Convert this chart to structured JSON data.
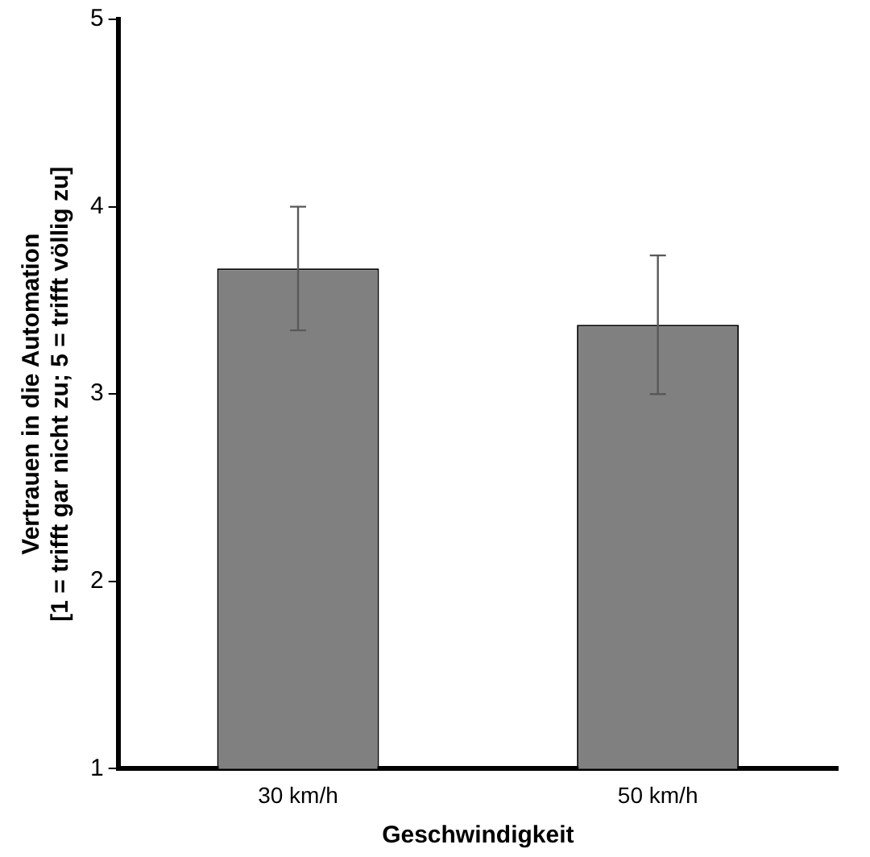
{
  "chart_data": {
    "type": "bar",
    "xlabel": "Geschwindigkeit",
    "ylabel": "Vertrauen in die Automation\n[1 = trifft gar nicht zu; 5 = trifft völlig zu]",
    "categories": [
      "30 km/h",
      "50 km/h"
    ],
    "values": [
      3.67,
      3.37
    ],
    "errors": [
      0.33,
      0.37
    ],
    "color": "#808080",
    "ylim": [
      1,
      5
    ],
    "yticks": [
      1,
      2,
      3,
      4,
      5
    ],
    "grid": false,
    "legend": false
  }
}
